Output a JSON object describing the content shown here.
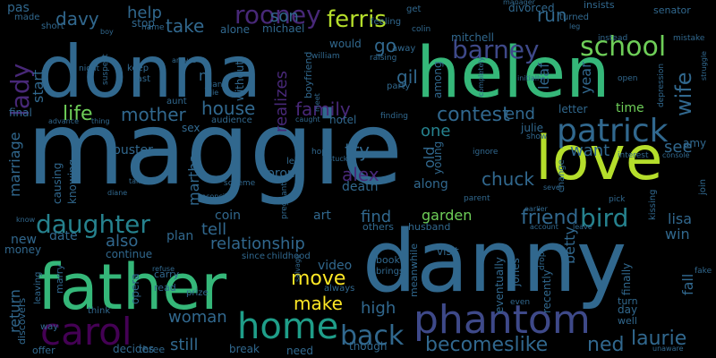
{
  "palette": {
    "background": "#000000",
    "dark_purple": "#440154",
    "indigo": "#482878",
    "blue_violet": "#3e4989",
    "steel_blue": "#31688e",
    "teal": "#26828e",
    "sea_green": "#1f9e89",
    "green": "#35b779",
    "light_green": "#6ece58",
    "lime": "#b5de2b",
    "yellow": "#fde725"
  },
  "words": [
    {
      "text": "maggie",
      "color": "steel_blue",
      "rank": 1
    },
    {
      "text": "danny",
      "color": "steel_blue",
      "rank": 1
    },
    {
      "text": "helen",
      "color": "green",
      "rank": 2
    },
    {
      "text": "donna",
      "color": "steel_blue",
      "rank": 2
    },
    {
      "text": "father",
      "color": "green",
      "rank": 2
    },
    {
      "text": "love",
      "color": "lime",
      "rank": 2
    },
    {
      "text": "phantom",
      "color": "blue_violet",
      "rank": 3
    },
    {
      "text": "home",
      "color": "sea_green",
      "rank": 3
    },
    {
      "text": "carol",
      "color": "dark_purple",
      "rank": 3
    },
    {
      "text": "patrick",
      "color": "steel_blue",
      "rank": 4
    },
    {
      "text": "school",
      "color": "light_green",
      "rank": 4
    },
    {
      "text": "barney",
      "color": "blue_violet",
      "rank": 4
    },
    {
      "text": "daughter",
      "color": "teal",
      "rank": 4
    },
    {
      "text": "back",
      "color": "steel_blue",
      "rank": 4
    },
    {
      "text": "rooney",
      "color": "indigo",
      "rank": 5
    },
    {
      "text": "lady",
      "color": "indigo",
      "rank": 5
    },
    {
      "text": "ferris",
      "color": "lime",
      "rank": 5
    },
    {
      "text": "becomeslike",
      "color": "steel_blue",
      "rank": 5
    },
    {
      "text": "ned",
      "color": "steel_blue",
      "rank": 5
    },
    {
      "text": "laurie",
      "color": "steel_blue",
      "rank": 5
    },
    {
      "text": "bird",
      "color": "teal",
      "rank": 5
    },
    {
      "text": "move",
      "color": "yellow",
      "rank": 5
    },
    {
      "text": "make",
      "color": "yellow",
      "rank": 5
    },
    {
      "text": "chuck",
      "color": "steel_blue",
      "rank": 5
    },
    {
      "text": "friend",
      "color": "steel_blue",
      "rank": 5
    },
    {
      "text": "alex",
      "color": "indigo",
      "rank": 5
    },
    {
      "text": "contest",
      "color": "steel_blue",
      "rank": 5
    },
    {
      "text": "wife",
      "color": "steel_blue",
      "rank": 5
    },
    {
      "text": "life",
      "color": "light_green",
      "rank": 5
    },
    {
      "text": "mother",
      "color": "steel_blue",
      "rank": 5
    },
    {
      "text": "house",
      "color": "steel_blue",
      "rank": 5
    },
    {
      "text": "family",
      "color": "indigo",
      "rank": 6
    },
    {
      "text": "gil",
      "color": "steel_blue",
      "rank": 6
    },
    {
      "text": "davy",
      "color": "steel_blue",
      "rank": 6
    },
    {
      "text": "take",
      "color": "steel_blue",
      "rank": 6
    },
    {
      "text": "help",
      "color": "steel_blue",
      "rank": 6
    },
    {
      "text": "son",
      "color": "steel_blue",
      "rank": 6
    },
    {
      "text": "want",
      "color": "steel_blue",
      "rank": 6
    },
    {
      "text": "see",
      "color": "steel_blue",
      "rank": 6
    },
    {
      "text": "run",
      "color": "steel_blue",
      "rank": 6
    },
    {
      "text": "go",
      "color": "steel_blue",
      "rank": 6
    },
    {
      "text": "one",
      "color": "teal",
      "rank": 6
    },
    {
      "text": "end",
      "color": "steel_blue",
      "rank": 6
    },
    {
      "text": "try",
      "color": "steel_blue",
      "rank": 6
    },
    {
      "text": "realizes",
      "color": "indigo",
      "rank": 6
    },
    {
      "text": "marriage",
      "color": "steel_blue",
      "rank": 6
    },
    {
      "text": "martha",
      "color": "steel_blue",
      "rank": 6
    },
    {
      "text": "tell",
      "color": "steel_blue",
      "rank": 6
    },
    {
      "text": "woman",
      "color": "steel_blue",
      "rank": 6
    },
    {
      "text": "still",
      "color": "steel_blue",
      "rank": 6
    },
    {
      "text": "relationship",
      "color": "steel_blue",
      "rank": 6
    },
    {
      "text": "garden",
      "color": "light_green",
      "rank": 6
    },
    {
      "text": "find",
      "color": "steel_blue",
      "rank": 6
    },
    {
      "text": "high",
      "color": "steel_blue",
      "rank": 6
    },
    {
      "text": "also",
      "color": "steel_blue",
      "rank": 6
    },
    {
      "text": "return",
      "color": "steel_blue",
      "rank": 6
    },
    {
      "text": "betty",
      "color": "steel_blue",
      "rank": 6
    },
    {
      "text": "lisa",
      "color": "steel_blue",
      "rank": 6
    },
    {
      "text": "start",
      "color": "steel_blue",
      "rank": 6
    },
    {
      "text": "year",
      "color": "steel_blue",
      "rank": 6
    },
    {
      "text": "old",
      "color": "steel_blue",
      "rank": 6
    },
    {
      "text": "leaf",
      "color": "steel_blue",
      "rank": 7
    },
    {
      "text": "fall",
      "color": "steel_blue",
      "rank": 7
    },
    {
      "text": "win",
      "color": "steel_blue",
      "rank": 7
    },
    {
      "text": "amy",
      "color": "steel_blue",
      "rank": 7
    },
    {
      "text": "time",
      "color": "light_green",
      "rank": 7
    },
    {
      "text": "buster",
      "color": "steel_blue",
      "rank": 7
    },
    {
      "text": "art",
      "color": "steel_blue",
      "rank": 7
    },
    {
      "text": "coin",
      "color": "steel_blue",
      "rank": 7
    },
    {
      "text": "prom",
      "color": "steel_blue",
      "rank": 7
    },
    {
      "text": "death",
      "color": "steel_blue",
      "rank": 7
    },
    {
      "text": "along",
      "color": "steel_blue",
      "rank": 7
    },
    {
      "text": "plan",
      "color": "steel_blue",
      "rank": 7
    },
    {
      "text": "new",
      "color": "steel_blue",
      "rank": 7
    },
    {
      "text": "date",
      "color": "steel_blue",
      "rank": 7
    },
    {
      "text": "video",
      "color": "steel_blue",
      "rank": 7
    },
    {
      "text": "sex",
      "color": "steel_blue",
      "rank": 7
    },
    {
      "text": "hotel",
      "color": "steel_blue",
      "rank": 7
    },
    {
      "text": "julie",
      "color": "steel_blue",
      "rank": 7
    },
    {
      "text": "letter",
      "color": "steel_blue",
      "rank": 7
    },
    {
      "text": "need",
      "color": "steel_blue",
      "rank": 7
    },
    {
      "text": "though",
      "color": "steel_blue",
      "rank": 7
    },
    {
      "text": "break",
      "color": "steel_blue",
      "rank": 7
    },
    {
      "text": "day",
      "color": "steel_blue",
      "rank": 7
    },
    {
      "text": "pas",
      "color": "steel_blue",
      "rank": 7
    },
    {
      "text": "stop",
      "color": "steel_blue",
      "rank": 7
    },
    {
      "text": "alone",
      "color": "steel_blue",
      "rank": 7
    },
    {
      "text": "michael",
      "color": "steel_blue",
      "rank": 7
    },
    {
      "text": "would",
      "color": "steel_blue",
      "rank": 7
    },
    {
      "text": "n",
      "color": "steel_blue",
      "rank": 7
    },
    {
      "text": "without",
      "color": "steel_blue",
      "rank": 7
    },
    {
      "text": "boyfriend",
      "color": "steel_blue",
      "rank": 7
    },
    {
      "text": "among",
      "color": "steel_blue",
      "rank": 7
    },
    {
      "text": "young",
      "color": "steel_blue",
      "rank": 7
    },
    {
      "text": "mitchell",
      "color": "steel_blue",
      "rank": 7
    },
    {
      "text": "divorced",
      "color": "steel_blue",
      "rank": 7
    },
    {
      "text": "insists",
      "color": "steel_blue",
      "rank": 7
    },
    {
      "text": "senator",
      "color": "steel_blue",
      "rank": 7
    },
    {
      "text": "visit",
      "color": "steel_blue",
      "rank": 7
    },
    {
      "text": "husband",
      "color": "steel_blue",
      "rank": 7
    },
    {
      "text": "others",
      "color": "steel_blue",
      "rank": 7
    },
    {
      "text": "book",
      "color": "steel_blue",
      "rank": 7
    },
    {
      "text": "brings",
      "color": "steel_blue",
      "rank": 7
    },
    {
      "text": "meanwhile",
      "color": "steel_blue",
      "rank": 7
    },
    {
      "text": "eventually",
      "color": "steel_blue",
      "rank": 7
    },
    {
      "text": "recently",
      "color": "steel_blue",
      "rank": 7
    },
    {
      "text": "jones",
      "color": "steel_blue",
      "rank": 7
    },
    {
      "text": "finally",
      "color": "steel_blue",
      "rank": 7
    },
    {
      "text": "turn",
      "color": "steel_blue",
      "rank": 7
    },
    {
      "text": "well",
      "color": "steel_blue",
      "rank": 7
    },
    {
      "text": "causing",
      "color": "steel_blue",
      "rank": 7
    },
    {
      "text": "knowing",
      "color": "steel_blue",
      "rank": 7
    },
    {
      "text": "continue",
      "color": "steel_blue",
      "rank": 7
    },
    {
      "text": "opera",
      "color": "steel_blue",
      "rank": 7
    },
    {
      "text": "money",
      "color": "steel_blue",
      "rank": 7
    },
    {
      "text": "marry",
      "color": "steel_blue",
      "rank": 7
    },
    {
      "text": "discovers",
      "color": "steel_blue",
      "rank": 7
    },
    {
      "text": "final",
      "color": "steel_blue",
      "rank": 7
    },
    {
      "text": "read",
      "color": "steel_blue",
      "rank": 7
    },
    {
      "text": "carry",
      "color": "steel_blue",
      "rank": 7
    },
    {
      "text": "decides",
      "color": "steel_blue",
      "rank": 7
    },
    {
      "text": "three",
      "color": "steel_blue",
      "rank": 7
    },
    {
      "text": "way",
      "color": "steel_blue",
      "rank": 7
    },
    {
      "text": "offer",
      "color": "steel_blue",
      "rank": 7
    },
    {
      "text": "leaving",
      "color": "steel_blue",
      "rank": 7
    },
    {
      "text": "think",
      "color": "steel_blue",
      "rank": 7
    },
    {
      "text": "always",
      "color": "steel_blue",
      "rank": 7
    },
    {
      "text": "since",
      "color": "steel_blue",
      "rank": 7
    },
    {
      "text": "childhood",
      "color": "steel_blue",
      "rank": 7
    },
    {
      "text": "prize",
      "color": "steel_blue",
      "rank": 7
    },
    {
      "text": "made",
      "color": "steel_blue",
      "rank": 7
    },
    {
      "text": "short",
      "color": "steel_blue",
      "rank": 7
    },
    {
      "text": "keep",
      "color": "steel_blue",
      "rank": 7
    },
    {
      "text": "last",
      "color": "steel_blue",
      "rank": 7
    },
    {
      "text": "feeling",
      "color": "steel_blue",
      "rank": 7
    },
    {
      "text": "get",
      "color": "steel_blue",
      "rank": 7
    },
    {
      "text": "away",
      "color": "steel_blue",
      "rank": 7
    },
    {
      "text": "party",
      "color": "steel_blue",
      "rank": 7
    },
    {
      "text": "raising",
      "color": "steel_blue",
      "rank": 7
    },
    {
      "text": "william",
      "color": "steel_blue",
      "rank": 7
    },
    {
      "text": "leo",
      "color": "steel_blue",
      "rank": 7
    },
    {
      "text": "hope",
      "color": "steel_blue",
      "rank": 7
    },
    {
      "text": "stuck",
      "color": "steel_blue",
      "rank": 7
    },
    {
      "text": "ignore",
      "color": "steel_blue",
      "rank": 7
    },
    {
      "text": "interest",
      "color": "steel_blue",
      "rank": 7
    },
    {
      "text": "console",
      "color": "steel_blue",
      "rank": 7
    },
    {
      "text": "show",
      "color": "steel_blue",
      "rank": 7
    },
    {
      "text": "earlier",
      "color": "steel_blue",
      "rank": 7
    },
    {
      "text": "account",
      "color": "steel_blue",
      "rank": 7
    },
    {
      "text": "leave",
      "color": "steel_blue",
      "rank": 7
    },
    {
      "text": "kissing",
      "color": "steel_blue",
      "rank": 7
    },
    {
      "text": "join",
      "color": "steel_blue",
      "rank": 7
    },
    {
      "text": "fake",
      "color": "steel_blue",
      "rank": 7
    },
    {
      "text": "pick",
      "color": "steel_blue",
      "rank": 7
    },
    {
      "text": "parent",
      "color": "steel_blue",
      "rank": 7
    },
    {
      "text": "seven",
      "color": "steel_blue",
      "rank": 7
    },
    {
      "text": "even",
      "color": "steel_blue",
      "rank": 7
    },
    {
      "text": "open",
      "color": "steel_blue",
      "rank": 7
    },
    {
      "text": "instead",
      "color": "steel_blue",
      "rank": 7
    },
    {
      "text": "mistake",
      "color": "steel_blue",
      "rank": 7
    },
    {
      "text": "struggle",
      "color": "steel_blue",
      "rank": 7
    },
    {
      "text": "depression",
      "color": "steel_blue",
      "rank": 7
    },
    {
      "text": "turned",
      "color": "steel_blue",
      "rank": 7
    },
    {
      "text": "manager",
      "color": "steel_blue",
      "rank": 7
    },
    {
      "text": "finding",
      "color": "steel_blue",
      "rank": 7
    },
    {
      "text": "caught",
      "color": "steel_blue",
      "rank": 7
    },
    {
      "text": "audience",
      "color": "steel_blue",
      "rank": 7
    },
    {
      "text": "aunt",
      "color": "steel_blue",
      "rank": 7
    },
    {
      "text": "scheme",
      "color": "steel_blue",
      "rank": 7
    },
    {
      "text": "reconcile",
      "color": "steel_blue",
      "rank": 7
    },
    {
      "text": "pregnant",
      "color": "steel_blue",
      "rank": 7
    },
    {
      "text": "taking",
      "color": "steel_blue",
      "rank": 7
    },
    {
      "text": "diane",
      "color": "steel_blue",
      "rank": 7
    },
    {
      "text": "advance",
      "color": "steel_blue",
      "rank": 7
    },
    {
      "text": "thing",
      "color": "steel_blue",
      "rank": 7
    },
    {
      "text": "night",
      "color": "steel_blue",
      "rank": 7
    },
    {
      "text": "suspect",
      "color": "steel_blue",
      "rank": 7
    },
    {
      "text": "name",
      "color": "steel_blue",
      "rank": 7
    },
    {
      "text": "arrives",
      "color": "steel_blue",
      "rank": 7
    },
    {
      "text": "juan",
      "color": "steel_blue",
      "rank": 7
    },
    {
      "text": "die",
      "color": "steel_blue",
      "rank": 7
    },
    {
      "text": "boy",
      "color": "steel_blue",
      "rank": 7
    },
    {
      "text": "colin",
      "color": "steel_blue",
      "rank": 7
    },
    {
      "text": "completely",
      "color": "steel_blue",
      "rank": 7
    },
    {
      "text": "initially",
      "color": "steel_blue",
      "rank": 7
    },
    {
      "text": "drop",
      "color": "steel_blue",
      "rank": 7
    },
    {
      "text": "change",
      "color": "steel_blue",
      "rank": 7
    },
    {
      "text": "unaware",
      "color": "steel_blue",
      "rank": 7
    },
    {
      "text": "refuse",
      "color": "steel_blue",
      "rank": 7
    },
    {
      "text": "salvage",
      "color": "steel_blue",
      "rank": 7
    },
    {
      "text": "leg",
      "color": "steel_blue",
      "rank": 7
    },
    {
      "text": "know",
      "color": "steel_blue",
      "rank": 7
    },
    {
      "text": "meet",
      "color": "steel_blue",
      "rank": 7
    }
  ]
}
